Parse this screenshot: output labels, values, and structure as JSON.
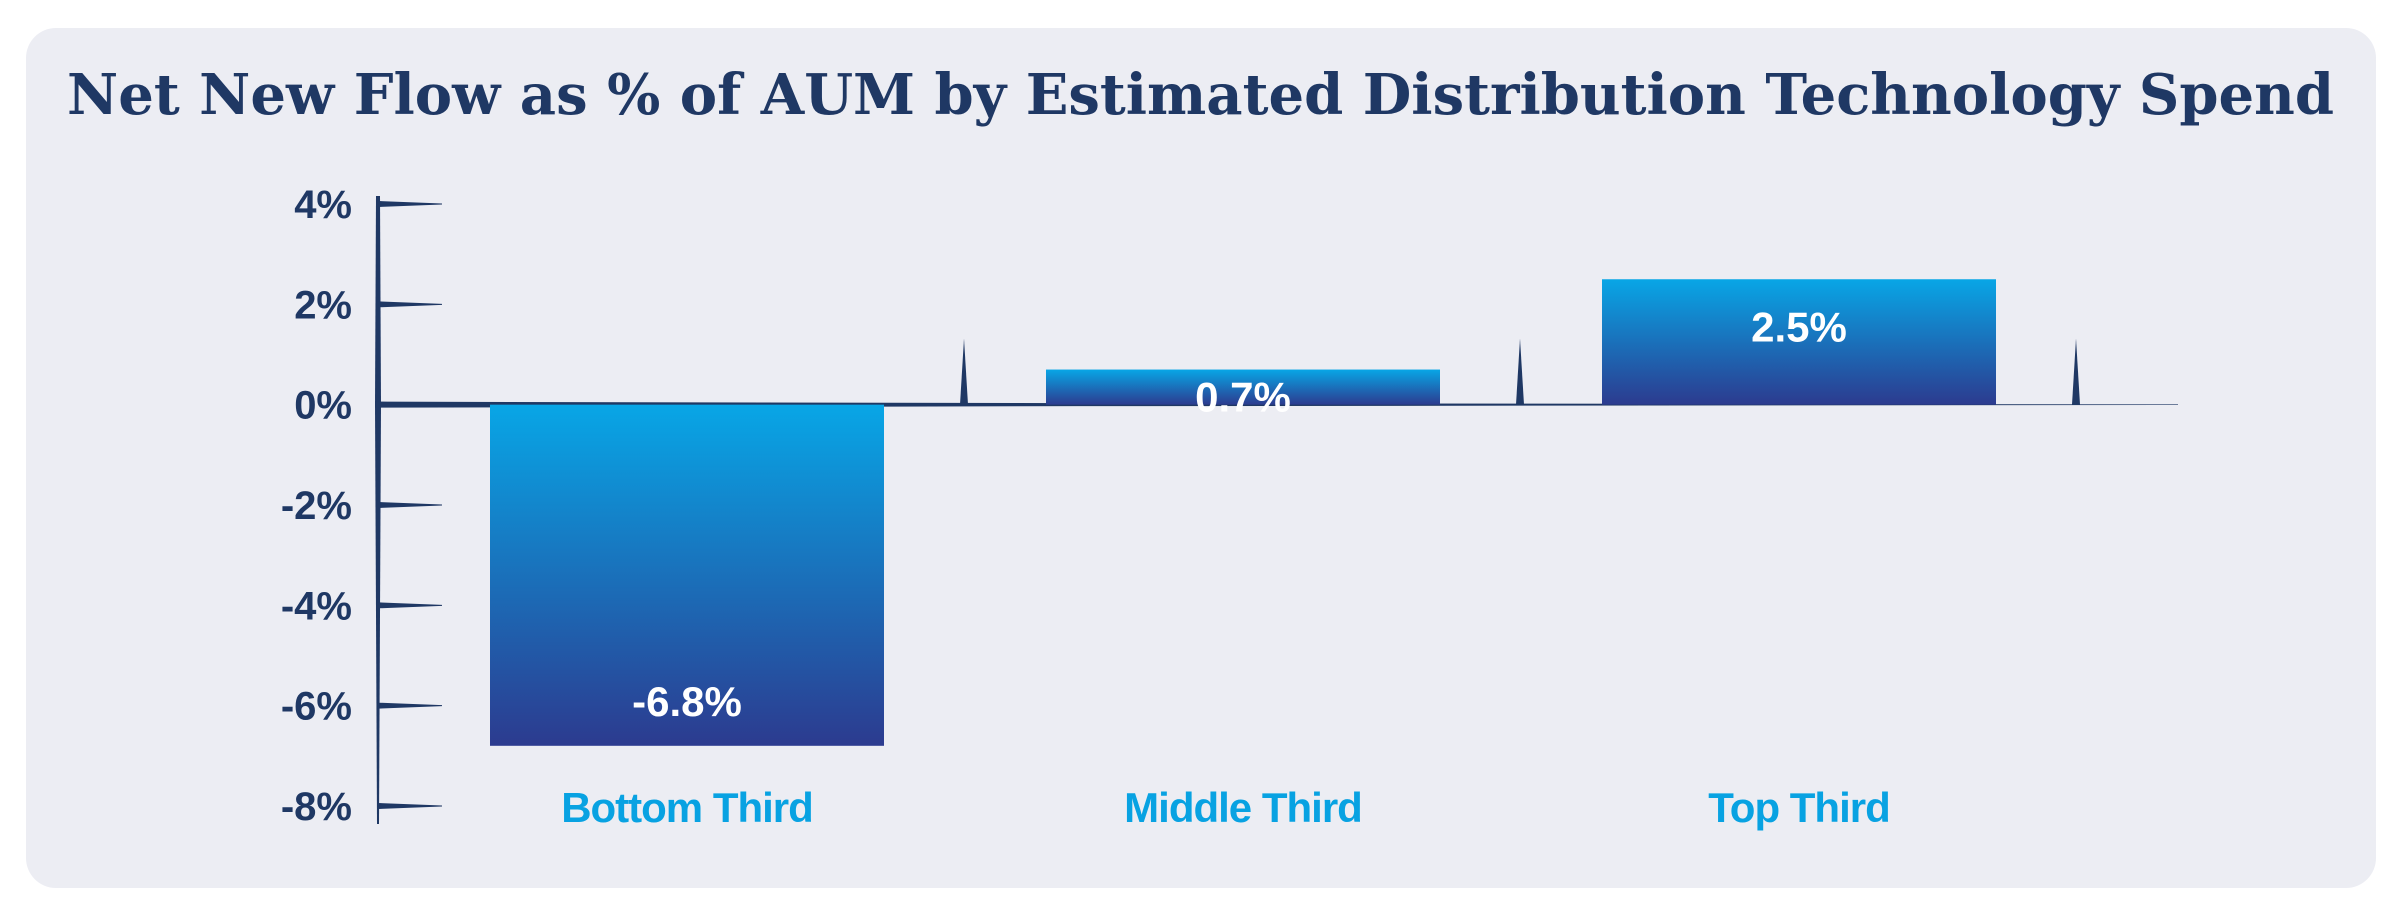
{
  "chart_data": {
    "type": "bar",
    "title": "Net New Flow as % of AUM by Estimated Distribution Technology Spend",
    "categories": [
      "Bottom Third",
      "Middle Third",
      "Top Third"
    ],
    "values": [
      -6.8,
      0.7,
      2.5
    ],
    "data_labels": [
      "-6.8%",
      "0.7%",
      "2.5%"
    ],
    "yticks": [
      4,
      2,
      0,
      -2,
      -4,
      -6,
      -8
    ],
    "ytick_labels": [
      "4%",
      "2%",
      "0%",
      "-2%",
      "-4%",
      "-6%",
      "-8%"
    ],
    "ylim": [
      -8,
      4
    ],
    "xlabel": "",
    "ylabel": "",
    "grid": false,
    "colors": {
      "bar_top": "#08a6e6",
      "bar_bottom": "#2c3b8f",
      "axis": "#1f3864",
      "category_text": "#08a2e2",
      "background": "#ecedf3"
    }
  }
}
